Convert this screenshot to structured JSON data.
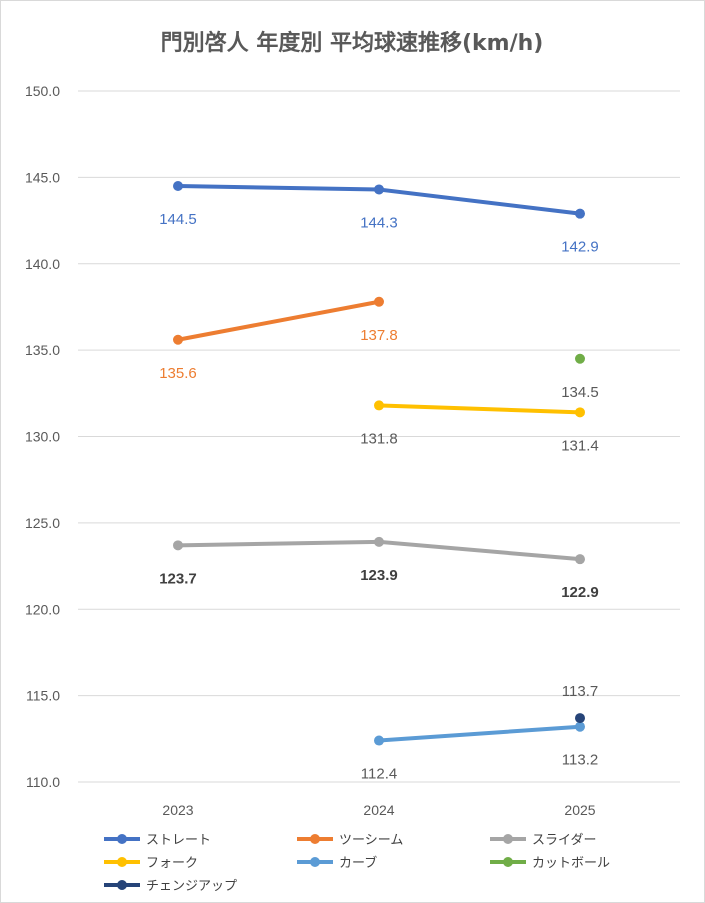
{
  "chart_data": {
    "type": "line",
    "title": "門別啓人 年度別 平均球速推移(km/h)",
    "xlabel": "",
    "ylabel": "",
    "categories": [
      "2023",
      "2024",
      "2025"
    ],
    "ylim": [
      110.0,
      150.0
    ],
    "yticks": [
      "110.0",
      "115.0",
      "120.0",
      "125.0",
      "130.0",
      "135.0",
      "140.0",
      "145.0",
      "150.0"
    ],
    "grid": true,
    "legend": "bottom",
    "series": [
      {
        "name": "ストレート",
        "color": "#4472c4",
        "values": [
          144.5,
          144.3,
          142.9
        ],
        "labels": [
          "144.5",
          "144.3",
          "142.9"
        ],
        "label_pos": "below",
        "label_color": "#4472c4",
        "label_bold": false
      },
      {
        "name": "ツーシーム",
        "color": "#ed7d31",
        "values": [
          135.6,
          137.8,
          null
        ],
        "labels": [
          "135.6",
          "137.8",
          null
        ],
        "label_pos": "below",
        "label_color": "#ed7d31",
        "label_bold": false
      },
      {
        "name": "スライダー",
        "color": "#a5a5a5",
        "values": [
          123.7,
          123.9,
          122.9
        ],
        "labels": [
          "123.7",
          "123.9",
          "122.9"
        ],
        "label_pos": "below",
        "label_color": "#404040",
        "label_bold": true
      },
      {
        "name": "フォーク",
        "color": "#ffc000",
        "values": [
          null,
          131.8,
          131.4
        ],
        "labels": [
          null,
          "131.8",
          "131.4"
        ],
        "label_pos": "below",
        "label_color": "#595959",
        "label_bold": false
      },
      {
        "name": "カーブ",
        "color": "#5b9bd5",
        "values": [
          null,
          112.4,
          113.2
        ],
        "labels": [
          null,
          "112.4",
          "113.2"
        ],
        "label_pos": "below",
        "label_color": "#595959",
        "label_bold": false
      },
      {
        "name": "カットボール",
        "color": "#70ad47",
        "values": [
          null,
          null,
          134.5
        ],
        "labels": [
          null,
          null,
          "134.5"
        ],
        "label_pos": "below",
        "label_color": "#595959",
        "label_bold": false
      },
      {
        "name": "チェンジアップ",
        "color": "#264478",
        "values": [
          null,
          null,
          113.7
        ],
        "labels": [
          null,
          null,
          "113.7"
        ],
        "label_pos": "above",
        "label_color": "#595959",
        "label_bold": false
      }
    ]
  }
}
